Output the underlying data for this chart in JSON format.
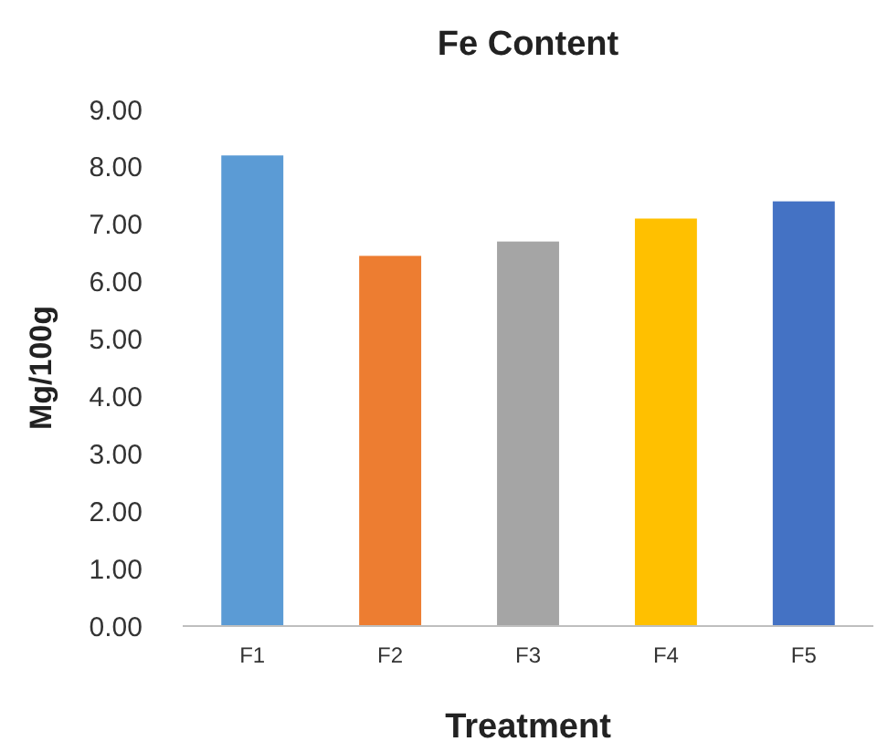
{
  "chart_data": {
    "type": "bar",
    "title": "Fe Content",
    "xlabel": "Treatment",
    "ylabel": "Mg/100g",
    "categories": [
      "F1",
      "F2",
      "F3",
      "F4",
      "F5"
    ],
    "values": [
      8.2,
      6.45,
      6.7,
      7.1,
      7.4
    ],
    "colors": [
      "#5b9bd5",
      "#ed7d31",
      "#a5a5a5",
      "#ffc000",
      "#4472c4"
    ],
    "ylim": [
      0,
      9
    ],
    "yticks": [
      {
        "value": 0,
        "label": "0.00"
      },
      {
        "value": 1,
        "label": "1.00"
      },
      {
        "value": 2,
        "label": "2.00"
      },
      {
        "value": 3,
        "label": "3.00"
      },
      {
        "value": 4,
        "label": "4.00"
      },
      {
        "value": 5,
        "label": "5.00"
      },
      {
        "value": 6,
        "label": "6.00"
      },
      {
        "value": 7,
        "label": "7.00"
      },
      {
        "value": 8,
        "label": "8.00"
      },
      {
        "value": 9,
        "label": "9.00"
      }
    ],
    "grid": false
  }
}
